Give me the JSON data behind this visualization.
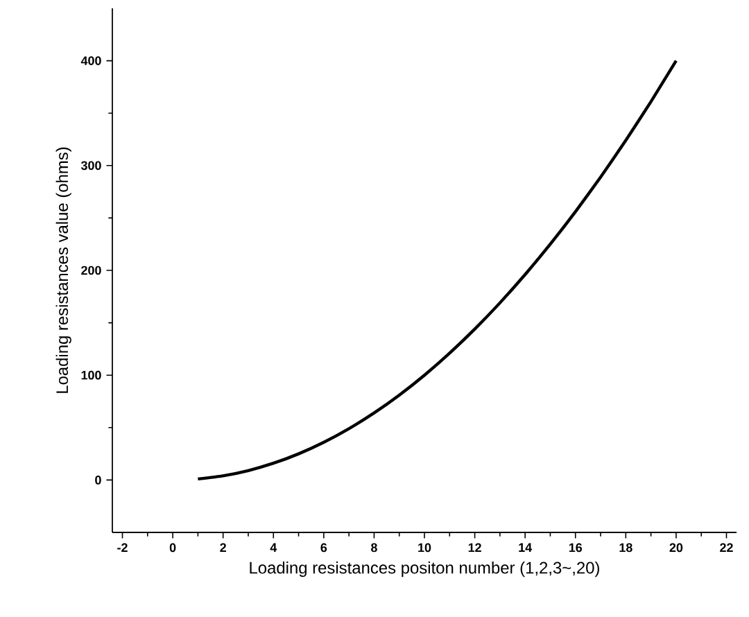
{
  "chart_data": {
    "type": "line",
    "xlabel": "Loading resistances positon number (1,2,3~,20)",
    "ylabel": "Loading resistances value (ohms)",
    "x": [
      1,
      2,
      3,
      4,
      5,
      6,
      7,
      8,
      9,
      10,
      11,
      12,
      13,
      14,
      15,
      16,
      17,
      18,
      19,
      20
    ],
    "series": [
      {
        "color": "#000000",
        "values": [
          1,
          4,
          9,
          16,
          25,
          36,
          49,
          64,
          81,
          100,
          121,
          144,
          169,
          196,
          225,
          256,
          289,
          324,
          361,
          400
        ]
      }
    ],
    "xlim": [
      -2.4,
      22.4
    ],
    "ylim": [
      -50,
      450
    ],
    "xticks": [
      -2,
      0,
      2,
      4,
      6,
      8,
      10,
      12,
      14,
      16,
      18,
      20,
      22
    ],
    "yticks": [
      0,
      100,
      200,
      300,
      400
    ],
    "marker": "none",
    "line_style": "solid"
  }
}
